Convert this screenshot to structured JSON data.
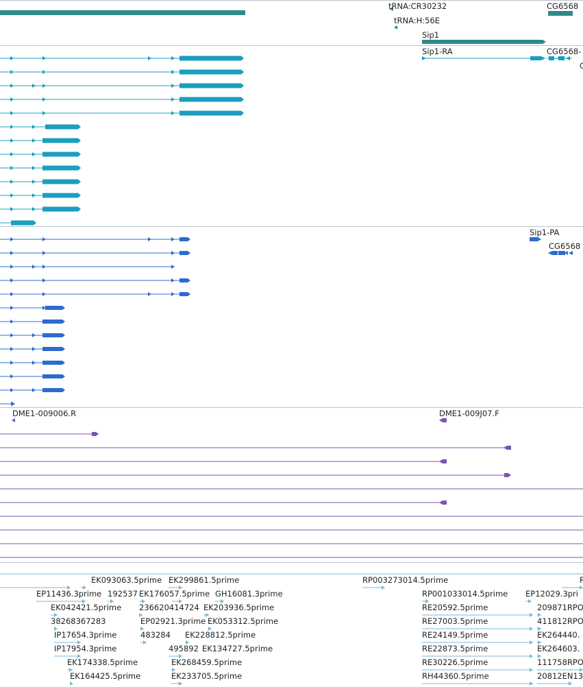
{
  "colors": {
    "gene": "#2f8a8a",
    "mrna": "#1a9fbf",
    "cds": "#2d6bcf",
    "cdna": "#7b55b0",
    "est": "#7ab8dc",
    "divider": "#b8c4cc"
  },
  "tracks": {
    "genes": {
      "labels": [
        {
          "id": "trna-cr30232",
          "text": "tRNA:CR30232"
        },
        {
          "id": "trna-h56e",
          "text": "tRNA:H:56E"
        },
        {
          "id": "sip1",
          "text": "Sip1"
        },
        {
          "id": "cg6568-gene",
          "text": "CG6568"
        }
      ]
    },
    "mrna": {
      "labels": [
        {
          "id": "sip1-ra",
          "text": "Sip1-RA"
        },
        {
          "id": "cg6568-r",
          "text": "CG6568-"
        },
        {
          "id": "partial-c",
          "text": "C"
        }
      ]
    },
    "proteins": {
      "labels": [
        {
          "id": "sip1-pa",
          "text": "Sip1-PA"
        },
        {
          "id": "cg6568-p",
          "text": "CG6568"
        }
      ]
    },
    "cdna": {
      "labels": [
        {
          "id": "dme1-009006-r",
          "text": "DME1-009006.R"
        },
        {
          "id": "dme1-009j07-f",
          "text": "DME1-009J07.F"
        }
      ]
    },
    "est": {
      "labels": [
        {
          "id": "ek093063",
          "text": "EK093063.5prime"
        },
        {
          "id": "ek299861",
          "text": "EK299861.5prime"
        },
        {
          "id": "rp003273014",
          "text": "RP003273014.5prime"
        },
        {
          "id": "r-partial",
          "text": "R"
        },
        {
          "id": "ep11436",
          "text": "EP11436.3prime"
        },
        {
          "id": "n192537",
          "text": "192537"
        },
        {
          "id": "ek176057",
          "text": "EK176057.5prime"
        },
        {
          "id": "gh16081",
          "text": "GH16081.3prime"
        },
        {
          "id": "rp001033014",
          "text": "RP001033014.5prime"
        },
        {
          "id": "ep12029",
          "text": "EP12029.3pri"
        },
        {
          "id": "ek042421",
          "text": "EK042421.5prime"
        },
        {
          "id": "n236620414724",
          "text": "236620414724"
        },
        {
          "id": "ek203936",
          "text": "EK203936.5prime"
        },
        {
          "id": "re20592",
          "text": "RE20592.5prime"
        },
        {
          "id": "n209871rp",
          "text": "209871RPO"
        },
        {
          "id": "n38268367283",
          "text": "38268367283"
        },
        {
          "id": "ep02921",
          "text": "EP02921.3prime"
        },
        {
          "id": "ek053312",
          "text": "EK053312.5prime"
        },
        {
          "id": "re27003",
          "text": "RE27003.5prime"
        },
        {
          "id": "n411812rp",
          "text": "411812RPO"
        },
        {
          "id": "ip17654",
          "text": "IP17654.3prime"
        },
        {
          "id": "n483284",
          "text": "483284"
        },
        {
          "id": "ek228812",
          "text": "EK228812.5prime"
        },
        {
          "id": "re24149",
          "text": "RE24149.5prime"
        },
        {
          "id": "ek264440",
          "text": "EK264440."
        },
        {
          "id": "ip17954",
          "text": "IP17954.3prime"
        },
        {
          "id": "n495892",
          "text": "495892"
        },
        {
          "id": "ek134727",
          "text": "EK134727.5prime"
        },
        {
          "id": "re22873",
          "text": "RE22873.5prime"
        },
        {
          "id": "ek264603",
          "text": "EK264603."
        },
        {
          "id": "ek174338",
          "text": "EK174338.5prime"
        },
        {
          "id": "ek268459",
          "text": "EK268459.5prime"
        },
        {
          "id": "re30226",
          "text": "RE30226.5prime"
        },
        {
          "id": "n111758rp",
          "text": "111758RPO"
        },
        {
          "id": "ek164425",
          "text": "EK164425.5prime"
        },
        {
          "id": "ek233705",
          "text": "EK233705.5prime"
        },
        {
          "id": "rh44360",
          "text": "RH44360.5prime"
        },
        {
          "id": "n20812en13",
          "text": "20812EN13"
        }
      ]
    }
  }
}
